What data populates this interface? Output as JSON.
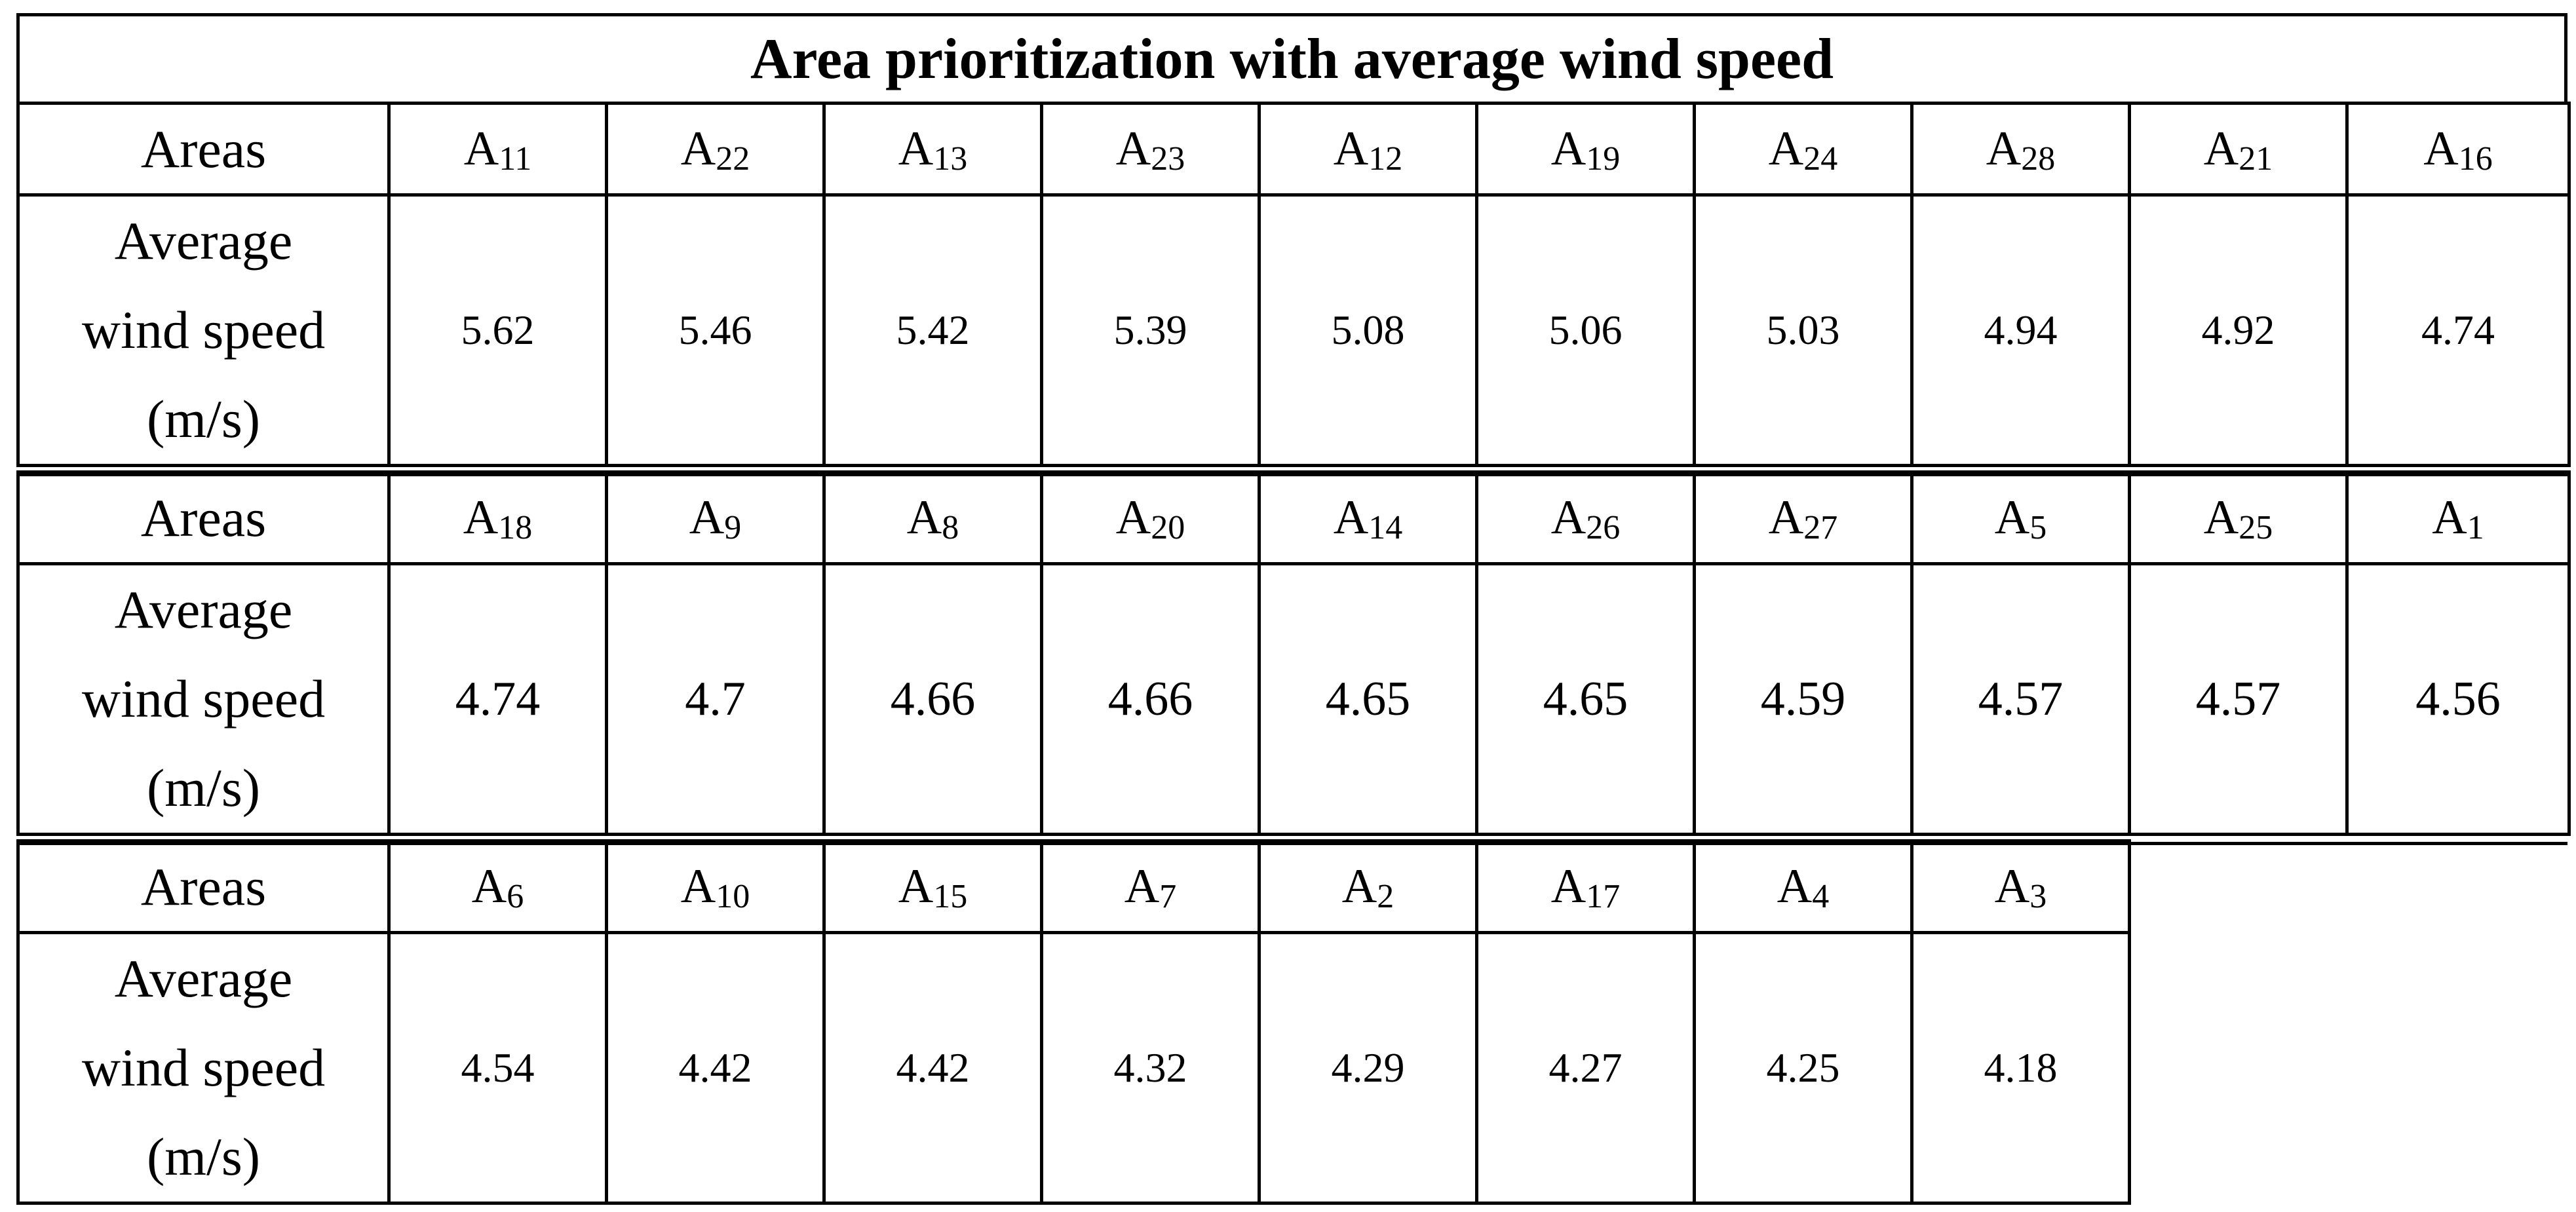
{
  "table": {
    "title": "Area prioritization with average wind speed",
    "row_labels": {
      "areas": "Areas",
      "speed_line1": "Average",
      "speed_line2": "wind speed",
      "speed_line3": "(m/s)"
    },
    "blocks": [
      {
        "areas": [
          {
            "letter": "A",
            "sub": "11"
          },
          {
            "letter": "A",
            "sub": "22"
          },
          {
            "letter": "A",
            "sub": "13"
          },
          {
            "letter": "A",
            "sub": "23"
          },
          {
            "letter": "A",
            "sub": "12"
          },
          {
            "letter": "A",
            "sub": "19"
          },
          {
            "letter": "A",
            "sub": "24"
          },
          {
            "letter": "A",
            "sub": "28"
          },
          {
            "letter": "A",
            "sub": "21"
          },
          {
            "letter": "A",
            "sub": "16"
          }
        ],
        "speeds": [
          "5.62",
          "5.46",
          "5.42",
          "5.39",
          "5.08",
          "5.06",
          "5.03",
          "4.94",
          "4.92",
          "4.74"
        ]
      },
      {
        "areas": [
          {
            "letter": "A",
            "sub": "18"
          },
          {
            "letter": "A",
            "sub": "9"
          },
          {
            "letter": "A",
            "sub": "8"
          },
          {
            "letter": "A",
            "sub": "20"
          },
          {
            "letter": "A",
            "sub": "14"
          },
          {
            "letter": "A",
            "sub": "26"
          },
          {
            "letter": "A",
            "sub": "27"
          },
          {
            "letter": "A",
            "sub": "5"
          },
          {
            "letter": "A",
            "sub": "25"
          },
          {
            "letter": "A",
            "sub": "1"
          }
        ],
        "speeds": [
          "4.74",
          "4.7",
          "4.66",
          "4.66",
          "4.65",
          "4.65",
          "4.59",
          "4.57",
          "4.57",
          "4.56"
        ]
      },
      {
        "areas": [
          {
            "letter": "A",
            "sub": "6"
          },
          {
            "letter": "A",
            "sub": "10"
          },
          {
            "letter": "A",
            "sub": "15"
          },
          {
            "letter": "A",
            "sub": "7"
          },
          {
            "letter": "A",
            "sub": "2"
          },
          {
            "letter": "A",
            "sub": "17"
          },
          {
            "letter": "A",
            "sub": "4"
          },
          {
            "letter": "A",
            "sub": "3"
          }
        ],
        "speeds": [
          "4.54",
          "4.42",
          "4.42",
          "4.32",
          "4.29",
          "4.27",
          "4.25",
          "4.18"
        ]
      }
    ]
  }
}
